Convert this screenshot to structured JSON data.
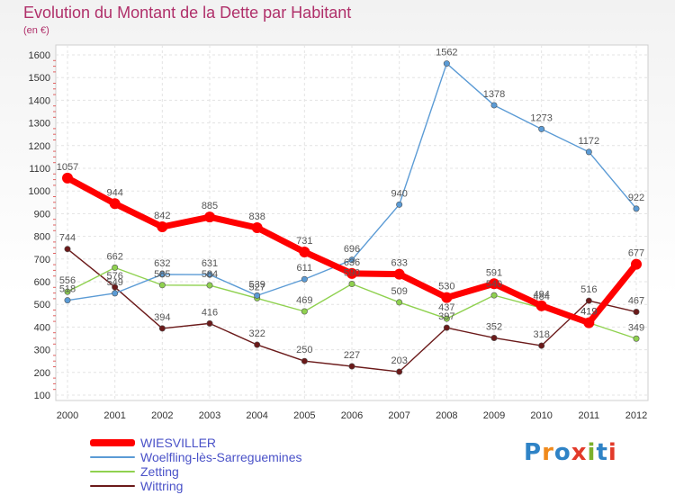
{
  "title": "Evolution du Montant de la Dette par Habitant",
  "subtitle": "(en €)",
  "logo_text": "Proxiti",
  "chart_data": {
    "type": "line",
    "x": [
      "2000",
      "2001",
      "2002",
      "2003",
      "2004",
      "2005",
      "2006",
      "2007",
      "2008",
      "2009",
      "2010",
      "2011",
      "2012"
    ],
    "ylim": [
      100,
      1600
    ],
    "yticks": [
      100,
      200,
      300,
      400,
      500,
      600,
      700,
      800,
      900,
      1000,
      1100,
      1200,
      1300,
      1400,
      1500,
      1600
    ],
    "grid": true,
    "legend_position": "bottom-left",
    "series": [
      {
        "name": "WIESVILLER",
        "color": "#ff0000",
        "values": [
          1057,
          944,
          842,
          885,
          838,
          731,
          636,
          633,
          530,
          591,
          494,
          419,
          677
        ]
      },
      {
        "name": "Woelfling-lès-Sarreguemines",
        "color": "#5b9bd5",
        "values": [
          518,
          549,
          632,
          631,
          539,
          611,
          696,
          940,
          1562,
          1378,
          1273,
          1172,
          922
        ]
      },
      {
        "name": "Zetting",
        "color": "#8fd14f",
        "values": [
          556,
          662,
          585,
          584,
          527,
          469,
          590,
          509,
          437,
          540,
          484,
          419,
          349
        ]
      },
      {
        "name": "Wittring",
        "color": "#6b1a1a",
        "values": [
          744,
          576,
          394,
          416,
          322,
          250,
          227,
          203,
          397,
          352,
          318,
          516,
          467
        ]
      }
    ]
  }
}
